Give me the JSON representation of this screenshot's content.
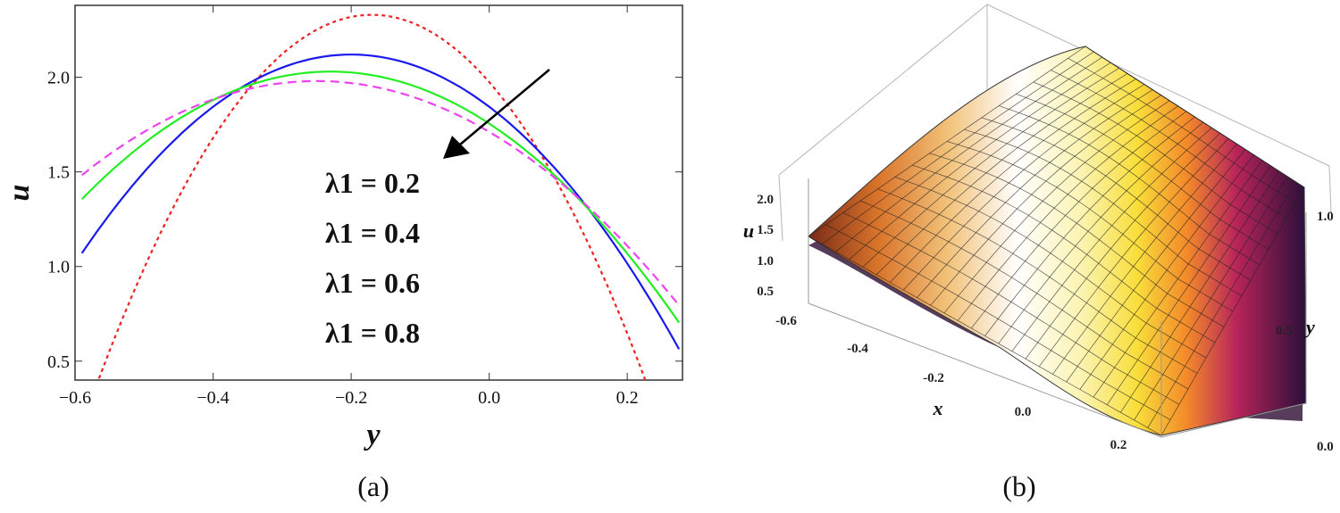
{
  "chart_data": [
    {
      "type": "line",
      "panel_label": "(a)",
      "xlabel": "y",
      "ylabel": "u",
      "xlim": [
        -0.6,
        0.28
      ],
      "ylim": [
        0.4,
        2.38
      ],
      "xticks": [
        "-0.6",
        "-0.4",
        "-0.2",
        "0.0",
        "0.2"
      ],
      "yticks": [
        "0.5",
        "1.0",
        "1.5",
        "2.0"
      ],
      "legend": [
        "λ1 = 0.2",
        "λ1 = 0.4",
        "λ1 = 0.6",
        "λ1 = 0.8"
      ],
      "series": [
        {
          "vertex": -0.17,
          "peak": 2.33,
          "curv": 12.3,
          "color": "#ee2222",
          "dash": "4,4"
        },
        {
          "vertex": -0.2,
          "peak": 2.12,
          "curv": 6.9,
          "color": "#1a1aee",
          "dash": ""
        },
        {
          "vertex": -0.23,
          "peak": 2.03,
          "curv": 5.2,
          "color": "#22ee22",
          "dash": ""
        },
        {
          "vertex": -0.25,
          "peak": 1.98,
          "curv": 4.3,
          "color": "#ee44ee",
          "dash": "10,6"
        }
      ]
    },
    {
      "type": "surface3d",
      "panel_label": "(b)",
      "xlabel": "x",
      "ylabel": "y",
      "zlabel": "u",
      "xticks": [
        "-0.6",
        "-0.4",
        "-0.2",
        "0.0",
        "0.2"
      ],
      "yticks": [
        "0.0",
        "0.5",
        "1.0"
      ],
      "zticks": [
        "0.5",
        "1.0",
        "1.5",
        "2.0"
      ]
    }
  ]
}
